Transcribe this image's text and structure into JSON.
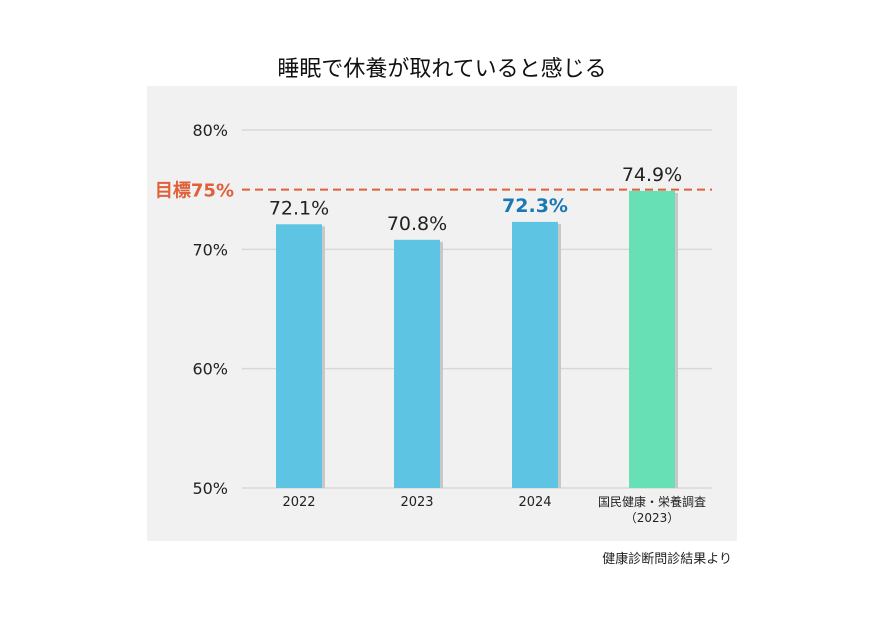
{
  "chart_data": {
    "type": "bar",
    "title": "睡眠で休養が取れていると感じる",
    "categories": [
      "2022",
      "2023",
      "2024",
      "国民健康・栄養調査\n（2023）"
    ],
    "values": [
      72.1,
      70.8,
      72.3,
      74.9
    ],
    "data_labels": [
      "72.1%",
      "70.8%",
      "72.3%",
      "74.9%"
    ],
    "bar_colors": [
      "#5ec4e4",
      "#5ec4e4",
      "#5ec4e4",
      "#66e0b4"
    ],
    "label_colors": [
      "#222222",
      "#222222",
      "#1a78b4",
      "#222222"
    ],
    "ylim": [
      50,
      80
    ],
    "yticks": [
      50,
      60,
      70,
      80
    ],
    "ytick_labels": [
      "50%",
      "60%",
      "70%",
      "80%"
    ],
    "grid": true,
    "target": {
      "value": 75,
      "label": "目標75%",
      "color": "#e0603a"
    },
    "source_note": "健康診断問診結果より",
    "background": "#f1f1f1"
  }
}
